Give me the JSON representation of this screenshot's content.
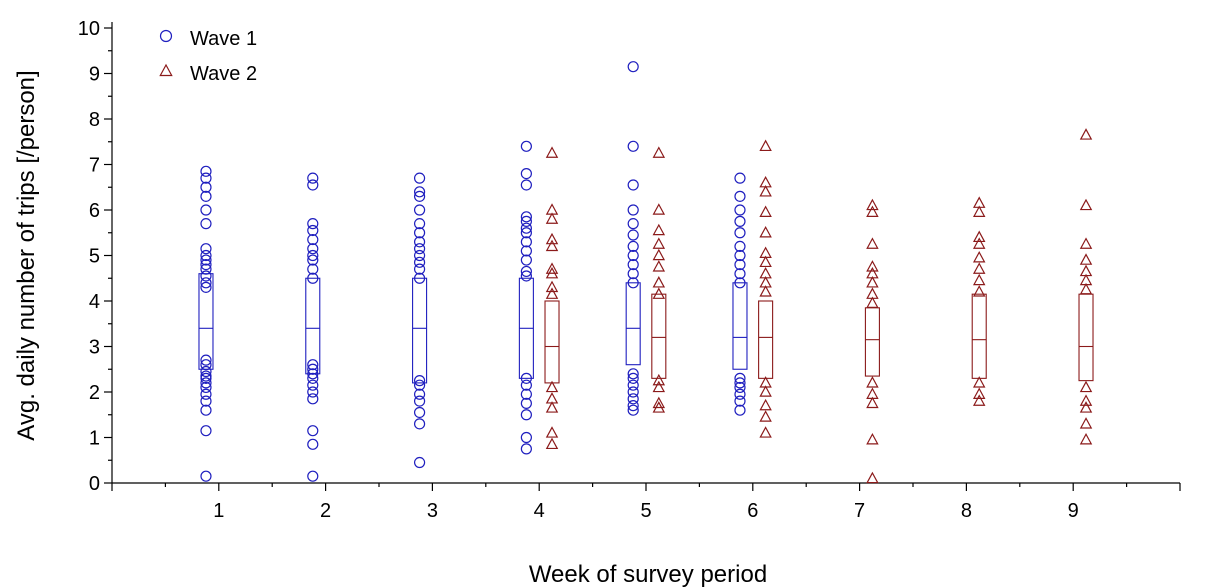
{
  "chart_data": {
    "type": "scatter",
    "xlabel": "Week of survey period",
    "ylabel": "Avg. daily number of trips [/person]",
    "xlim": [
      0,
      10
    ],
    "ylim": [
      0,
      10
    ],
    "x_ticks": [
      "1",
      "2",
      "3",
      "4",
      "5",
      "6",
      "7",
      "8",
      "9"
    ],
    "y_ticks": [
      "0",
      "1",
      "2",
      "3",
      "4",
      "5",
      "6",
      "7",
      "8",
      "9",
      "10"
    ],
    "grid": false,
    "legend": "top-left",
    "series": [
      {
        "name": "Wave 1",
        "marker": "circle",
        "color": "#1f1fbf",
        "groups": [
          {
            "week": 1,
            "q1": 2.5,
            "median": 3.4,
            "q3": 4.6,
            "values": [
              0.15,
              1.15,
              1.6,
              1.8,
              1.95,
              2.1,
              2.2,
              2.3,
              2.35,
              2.45,
              2.6,
              2.7,
              4.3,
              4.4,
              4.55,
              4.7,
              4.8,
              4.9,
              5.0,
              5.15,
              5.7,
              6.0,
              6.3,
              6.5,
              6.7,
              6.85
            ]
          },
          {
            "week": 2,
            "q1": 2.4,
            "median": 3.4,
            "q3": 4.5,
            "values": [
              0.15,
              0.85,
              1.15,
              1.85,
              2.0,
              2.15,
              2.3,
              2.4,
              2.5,
              2.6,
              4.5,
              4.7,
              4.9,
              5.0,
              5.15,
              5.35,
              5.55,
              5.7,
              6.55,
              6.7
            ]
          },
          {
            "week": 3,
            "q1": 2.2,
            "median": 3.4,
            "q3": 4.5,
            "values": [
              0.45,
              1.3,
              1.55,
              1.8,
              1.95,
              2.15,
              2.25,
              4.5,
              4.7,
              4.85,
              5.0,
              5.15,
              5.3,
              5.5,
              5.7,
              6.0,
              6.3,
              6.4,
              6.7
            ]
          },
          {
            "week": 4,
            "q1": 2.3,
            "median": 3.4,
            "q3": 4.5,
            "values": [
              0.75,
              1.0,
              1.5,
              1.75,
              1.95,
              2.15,
              2.3,
              4.55,
              4.65,
              4.9,
              5.1,
              5.3,
              5.5,
              5.6,
              5.75,
              5.85,
              6.55,
              6.8,
              7.4
            ]
          },
          {
            "week": 5,
            "q1": 2.6,
            "median": 3.4,
            "q3": 4.4,
            "values": [
              1.6,
              1.7,
              1.85,
              2.0,
              2.15,
              2.3,
              2.4,
              4.4,
              4.6,
              4.8,
              5.0,
              5.2,
              5.45,
              5.7,
              6.0,
              6.55,
              7.4,
              9.15
            ]
          },
          {
            "week": 6,
            "q1": 2.5,
            "median": 3.2,
            "q3": 4.4,
            "values": [
              1.6,
              1.8,
              1.95,
              2.1,
              2.2,
              2.3,
              4.4,
              4.6,
              4.8,
              5.0,
              5.2,
              5.5,
              5.75,
              6.0,
              6.3,
              6.7
            ]
          }
        ]
      },
      {
        "name": "Wave 2",
        "marker": "triangle",
        "color": "#8b1a1a",
        "groups": [
          {
            "week": 4,
            "q1": 2.2,
            "median": 3.0,
            "q3": 4.0,
            "values": [
              0.85,
              1.1,
              1.65,
              1.85,
              2.1,
              4.15,
              4.3,
              4.6,
              4.7,
              5.2,
              5.35,
              5.8,
              6.0,
              7.25
            ]
          },
          {
            "week": 5,
            "q1": 2.3,
            "median": 3.2,
            "q3": 4.15,
            "values": [
              1.65,
              1.75,
              2.1,
              2.25,
              4.15,
              4.4,
              4.75,
              5.0,
              5.25,
              5.55,
              6.0,
              7.25
            ]
          },
          {
            "week": 6,
            "q1": 2.3,
            "median": 3.2,
            "q3": 4.0,
            "values": [
              1.1,
              1.45,
              1.7,
              2.0,
              2.2,
              4.2,
              4.4,
              4.6,
              4.85,
              5.05,
              5.5,
              5.95,
              6.4,
              6.6,
              7.4
            ]
          },
          {
            "week": 7,
            "q1": 2.35,
            "median": 3.15,
            "q3": 3.85,
            "values": [
              0.1,
              0.95,
              1.75,
              1.95,
              2.2,
              3.95,
              4.15,
              4.4,
              4.6,
              4.75,
              5.25,
              5.95,
              6.1
            ]
          },
          {
            "week": 8,
            "q1": 2.3,
            "median": 3.15,
            "q3": 4.15,
            "values": [
              1.8,
              1.95,
              2.2,
              4.2,
              4.45,
              4.7,
              4.95,
              5.25,
              5.4,
              5.95,
              6.15
            ]
          },
          {
            "week": 9,
            "q1": 2.25,
            "median": 3.0,
            "q3": 4.15,
            "values": [
              0.95,
              1.3,
              1.65,
              1.8,
              2.1,
              4.25,
              4.45,
              4.65,
              4.9,
              5.25,
              6.1,
              7.65
            ]
          }
        ]
      }
    ]
  }
}
